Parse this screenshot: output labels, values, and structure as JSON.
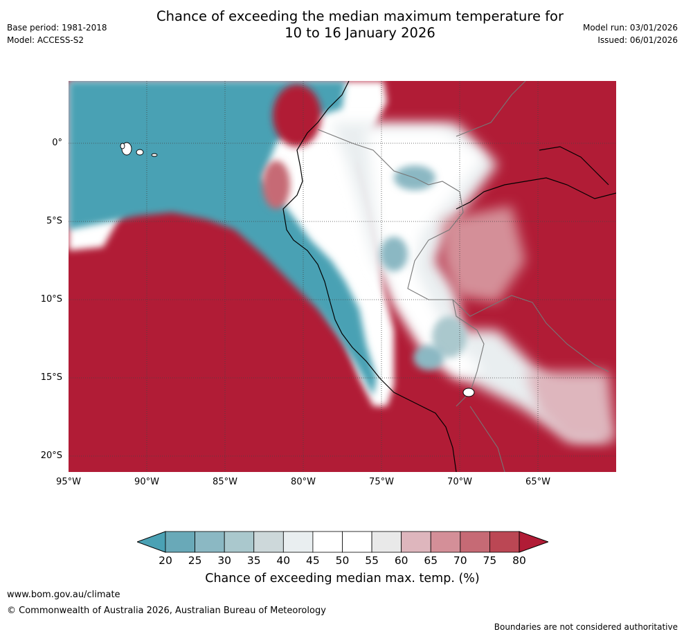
{
  "header": {
    "title_line1": "Chance of exceeding the median maximum temperature for",
    "title_line2": "10 to 16 January 2026",
    "base_period": "Base period: 1981-2018",
    "model": "Model: ACCESS-S2",
    "model_run": "Model run: 03/01/2026",
    "issued": "Issued: 06/01/2026"
  },
  "map": {
    "lat_labels": [
      "0°",
      "5°S",
      "10°S",
      "15°S",
      "20°S"
    ],
    "lon_labels": [
      "95°W",
      "90°W",
      "85°W",
      "80°W",
      "75°W",
      "70°W",
      "65°W"
    ]
  },
  "colorbar": {
    "title": "Chance of exceeding median max. temp. (%)",
    "ticks": [
      "20",
      "25",
      "30",
      "35",
      "40",
      "45",
      "50",
      "55",
      "60",
      "65",
      "70",
      "75",
      "80"
    ],
    "colors": {
      "below20": "#4aa1b4",
      "b20_25": "#69a9b8",
      "b25_30": "#8bb8c3",
      "b30_35": "#aac8cd",
      "b35_40": "#cdd8da",
      "b40_45": "#e9eef0",
      "b45_50": "#ffffff",
      "b50_55": "#ffffff",
      "b55_60": "#e9e9e9",
      "b60_65": "#deb6bd",
      "b65_70": "#d48f98",
      "b70_75": "#c66a75",
      "b75_80": "#bb4754",
      "above80": "#b11c36"
    }
  },
  "footer": {
    "url": "www.bom.gov.au/climate",
    "copyright": "© Commonwealth of Australia 2026, Australian Bureau of Meteorology",
    "disclaimer": "Boundaries are not considered authoritative"
  }
}
